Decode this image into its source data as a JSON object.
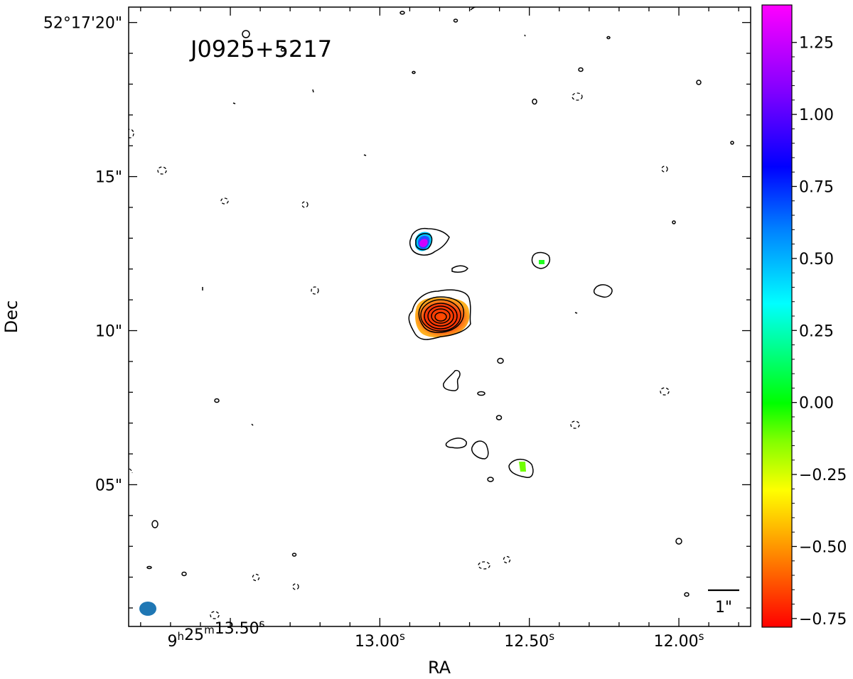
{
  "chart_data": {
    "type": "contour",
    "source_name": "J0925+5217",
    "xlabel": "RA",
    "ylabel": "Dec",
    "x_ticks": [
      {
        "value": 13.5,
        "label_h": "9",
        "label_m": "25",
        "label_s": "13.50",
        "h_sup": "h",
        "m_sup": "m",
        "s_sup": "s"
      },
      {
        "value": 13.0,
        "label_s": "13.00",
        "s_sup": "s"
      },
      {
        "value": 12.5,
        "label_s": "12.50",
        "s_sup": "s"
      },
      {
        "value": 12.0,
        "label_s": "12.00",
        "s_sup": "s"
      }
    ],
    "y_ticks": [
      {
        "value": 20,
        "label": "52°17'20\""
      },
      {
        "value": 15,
        "label": "15\""
      },
      {
        "value": 10,
        "label": "10\""
      },
      {
        "value": 5,
        "label": "05\""
      }
    ],
    "xlim_seconds": [
      13.84,
      11.76
    ],
    "ylim_arcsec": [
      0.4,
      20.5
    ],
    "scale_bar": {
      "label": "1\"",
      "length_arcsec": 1
    },
    "beam": {
      "color": "#1f77b4"
    },
    "colorbar": {
      "range": [
        -0.78,
        1.38
      ],
      "ticks": [
        {
          "value": 1.25,
          "label": "1.25"
        },
        {
          "value": 1.0,
          "label": "1.00"
        },
        {
          "value": 0.75,
          "label": "0.75"
        },
        {
          "value": 0.5,
          "label": "0.50"
        },
        {
          "value": 0.25,
          "label": "0.25"
        },
        {
          "value": 0.0,
          "label": "0.00"
        },
        {
          "value": -0.25,
          "label": "−0.25"
        },
        {
          "value": -0.5,
          "label": "−0.50"
        },
        {
          "value": -0.75,
          "label": "−0.75"
        }
      ],
      "colormap": [
        "#ff0000",
        "#ff8000",
        "#ffff00",
        "#80ff00",
        "#00ff00",
        "#00ffff",
        "#0080ff",
        "#0000ff",
        "#8000ff",
        "#ff00ff"
      ]
    },
    "core_component": {
      "ra_s": 12.86,
      "dec_arcsec": 10.4,
      "spectral_index": -0.5
    },
    "north_component": {
      "ra_s": 12.91,
      "dec_arcsec": 12.8,
      "spectral_index": 1.2
    },
    "grid": false
  }
}
